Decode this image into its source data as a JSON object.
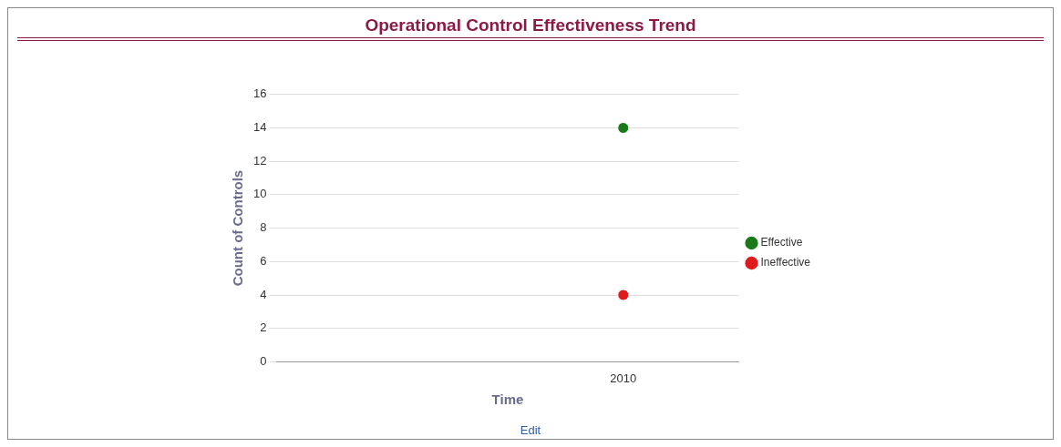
{
  "chart_data": {
    "type": "line",
    "title": "Operational Control Effectiveness Trend",
    "xlabel": "Time",
    "ylabel": "Count of Controls",
    "categories": [
      null,
      "2010"
    ],
    "series": [
      {
        "name": "Effective",
        "color": "#1a7a1a",
        "values": [
          null,
          14
        ]
      },
      {
        "name": "Ineffective",
        "color": "#e01b1b",
        "values": [
          null,
          4
        ]
      }
    ],
    "ylim": [
      0,
      16
    ],
    "yticks": [
      0,
      2,
      4,
      6,
      8,
      10,
      12,
      14,
      16
    ],
    "grid": "y",
    "legend": "right",
    "marker": "circle",
    "annotations": [
      "Edit"
    ]
  }
}
